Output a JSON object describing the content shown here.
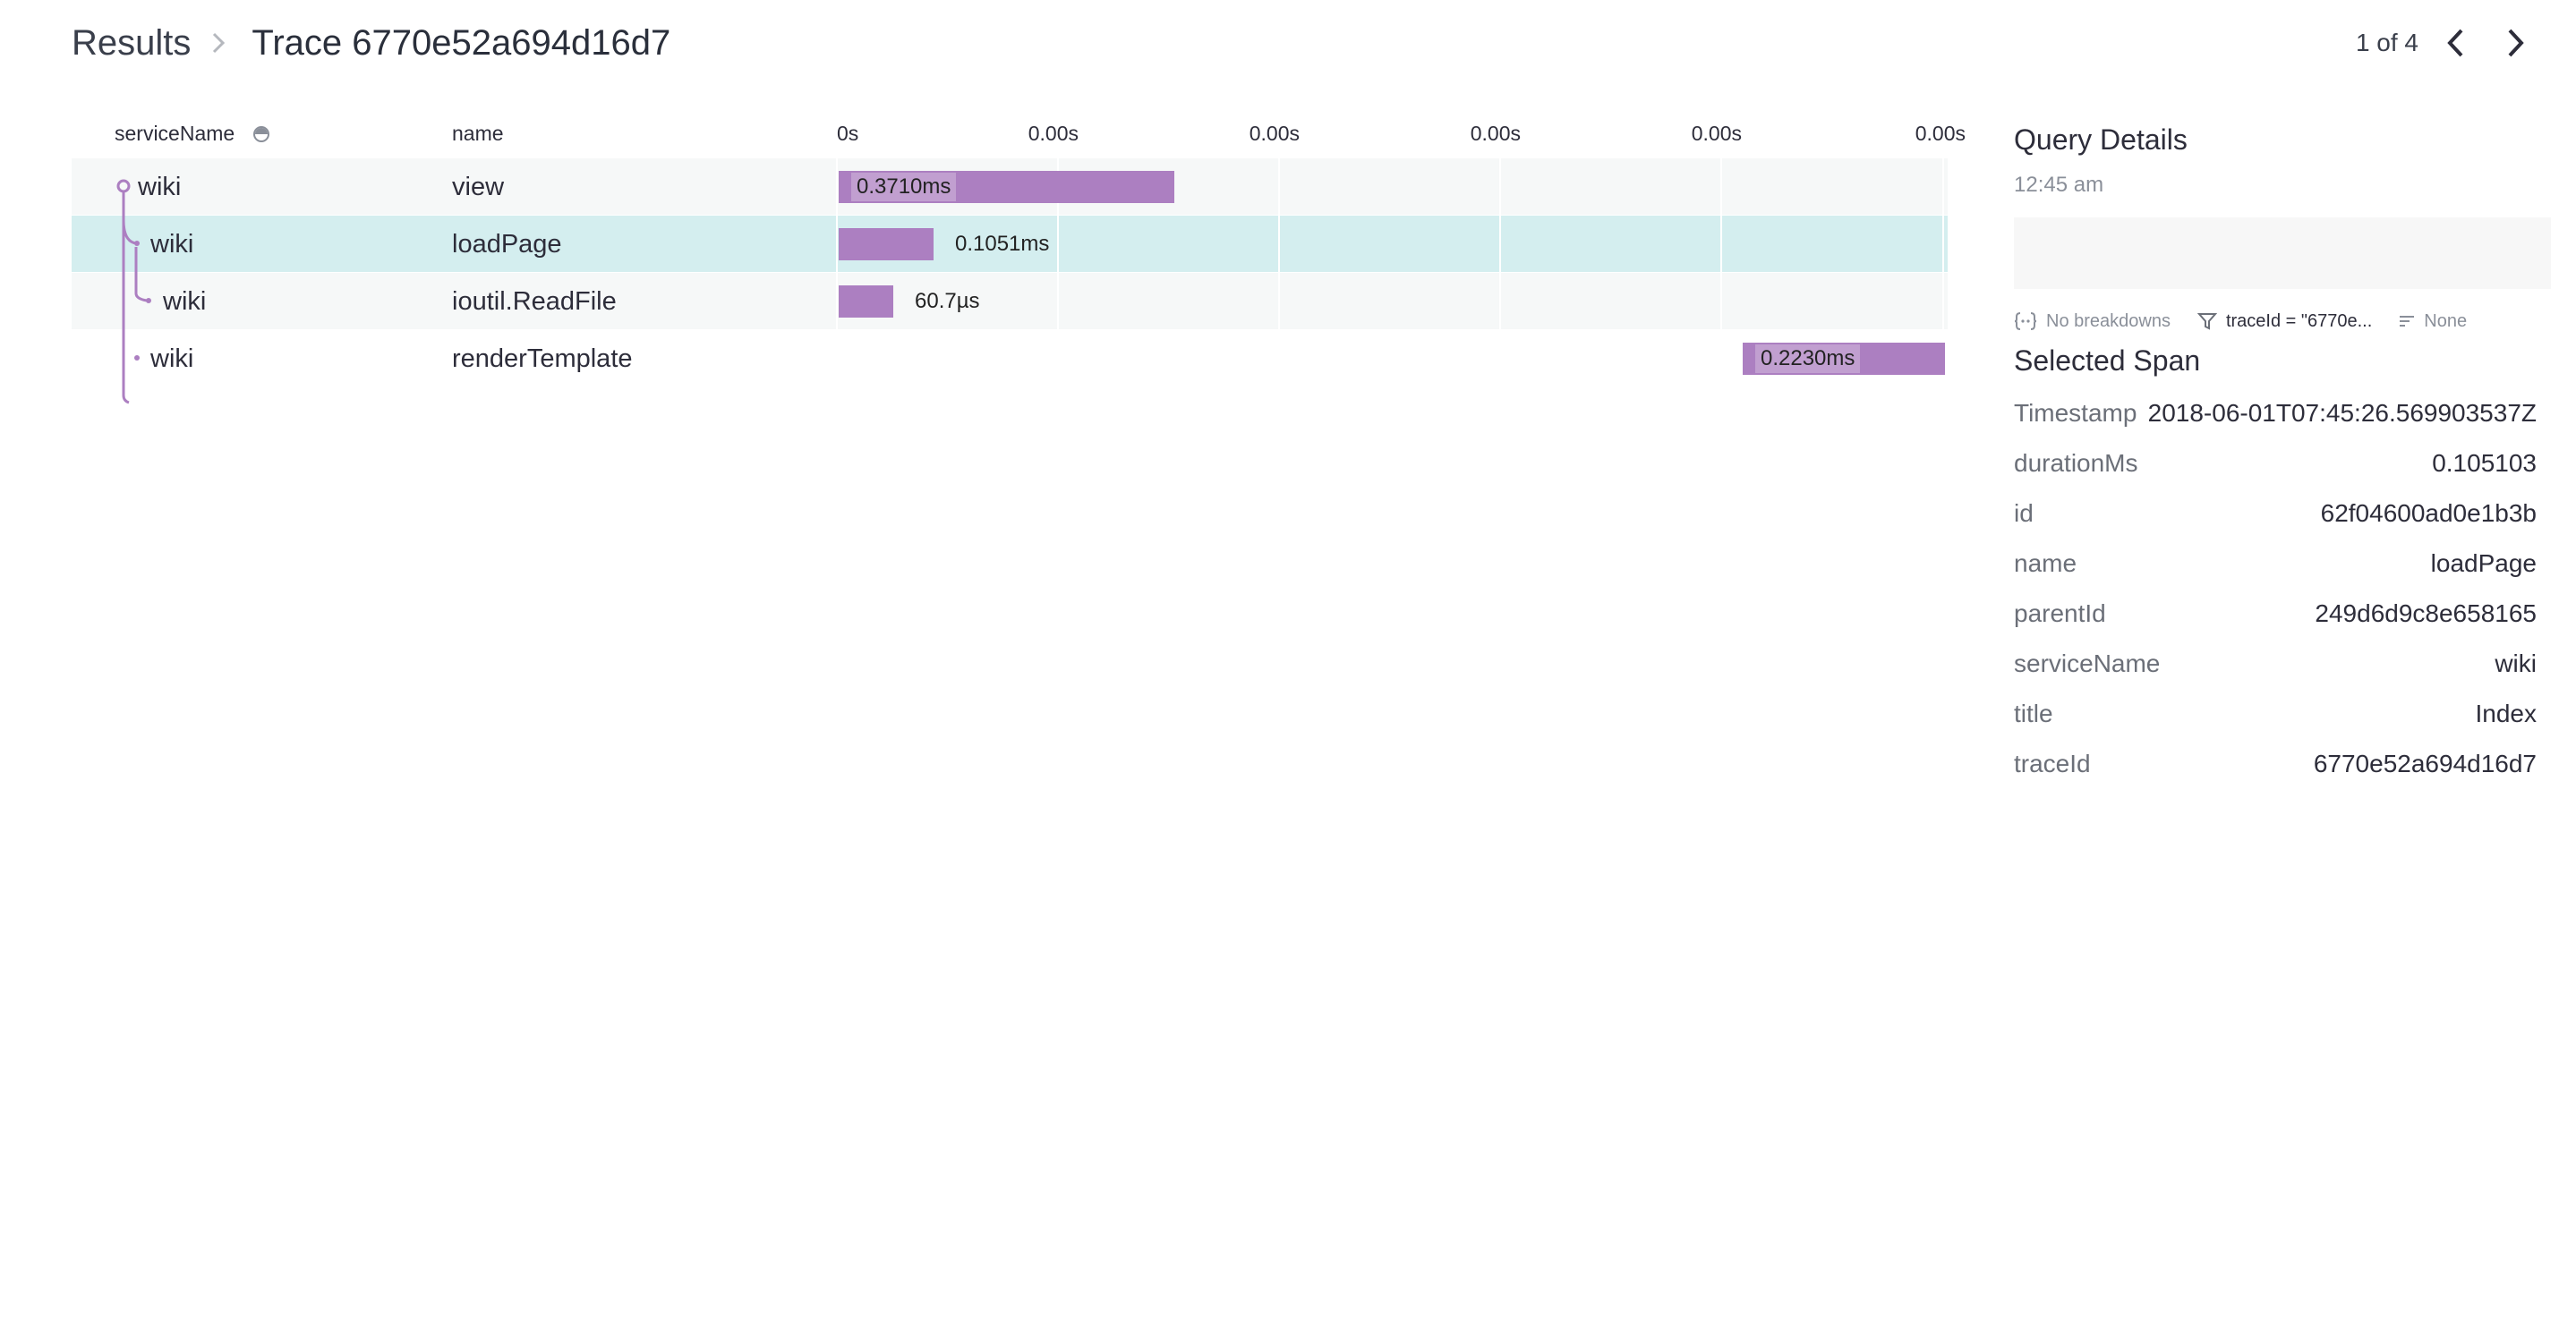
{
  "breadcrumb": {
    "root": "Results",
    "current": "Trace 6770e52a694d16d7"
  },
  "pager": {
    "text": "1 of 4"
  },
  "table": {
    "col_service": "serviceName",
    "col_name": "name",
    "ticks": [
      "0s",
      "0.00s",
      "0.00s",
      "0.00s",
      "0.00s",
      "0.00s"
    ],
    "rows": [
      {
        "service": "wiki",
        "name": "view",
        "duration_label": "0.3710ms",
        "start_fraction": 0.0,
        "width_fraction": 0.303
      },
      {
        "service": "wiki",
        "name": "loadPage",
        "duration_label": "0.1051ms",
        "start_fraction": 0.0,
        "width_fraction": 0.086
      },
      {
        "service": "wiki",
        "name": "ioutil.ReadFile",
        "duration_label": "60.7µs",
        "start_fraction": 0.0,
        "width_fraction": 0.049
      },
      {
        "service": "wiki",
        "name": "renderTemplate",
        "duration_label": "0.2230ms",
        "start_fraction": 0.817,
        "width_fraction": 0.183
      }
    ],
    "selected_row": 1
  },
  "query_details": {
    "title": "Query Details",
    "time": "12:45 am",
    "breakdowns": "No breakdowns",
    "filter": "traceId = \"6770e...",
    "order": "None"
  },
  "selected_span": {
    "title": "Selected Span",
    "fields": [
      {
        "key": "Timestamp",
        "value": "2018-06-01T07:45:26.569903537Z"
      },
      {
        "key": "durationMs",
        "value": "0.105103"
      },
      {
        "key": "id",
        "value": "62f04600ad0e1b3b"
      },
      {
        "key": "name",
        "value": "loadPage"
      },
      {
        "key": "parentId",
        "value": "249d6d9c8e658165"
      },
      {
        "key": "serviceName",
        "value": "wiki"
      },
      {
        "key": "title",
        "value": "Index"
      },
      {
        "key": "traceId",
        "value": "6770e52a694d16d7"
      }
    ]
  },
  "colors": {
    "bar": "#ac7fc1",
    "selected_row": "#d4eeef",
    "alt_row": "#f6f8f8",
    "tree_line": "#ac7fc1"
  },
  "icons": {
    "breadcrumb_separator": "chevron-right-icon",
    "prev": "chevron-left-icon",
    "next": "chevron-right-icon",
    "sort": "sort-icon",
    "breakdowns": "braces-icon",
    "filter": "filter-icon",
    "order": "order-lines-icon"
  }
}
